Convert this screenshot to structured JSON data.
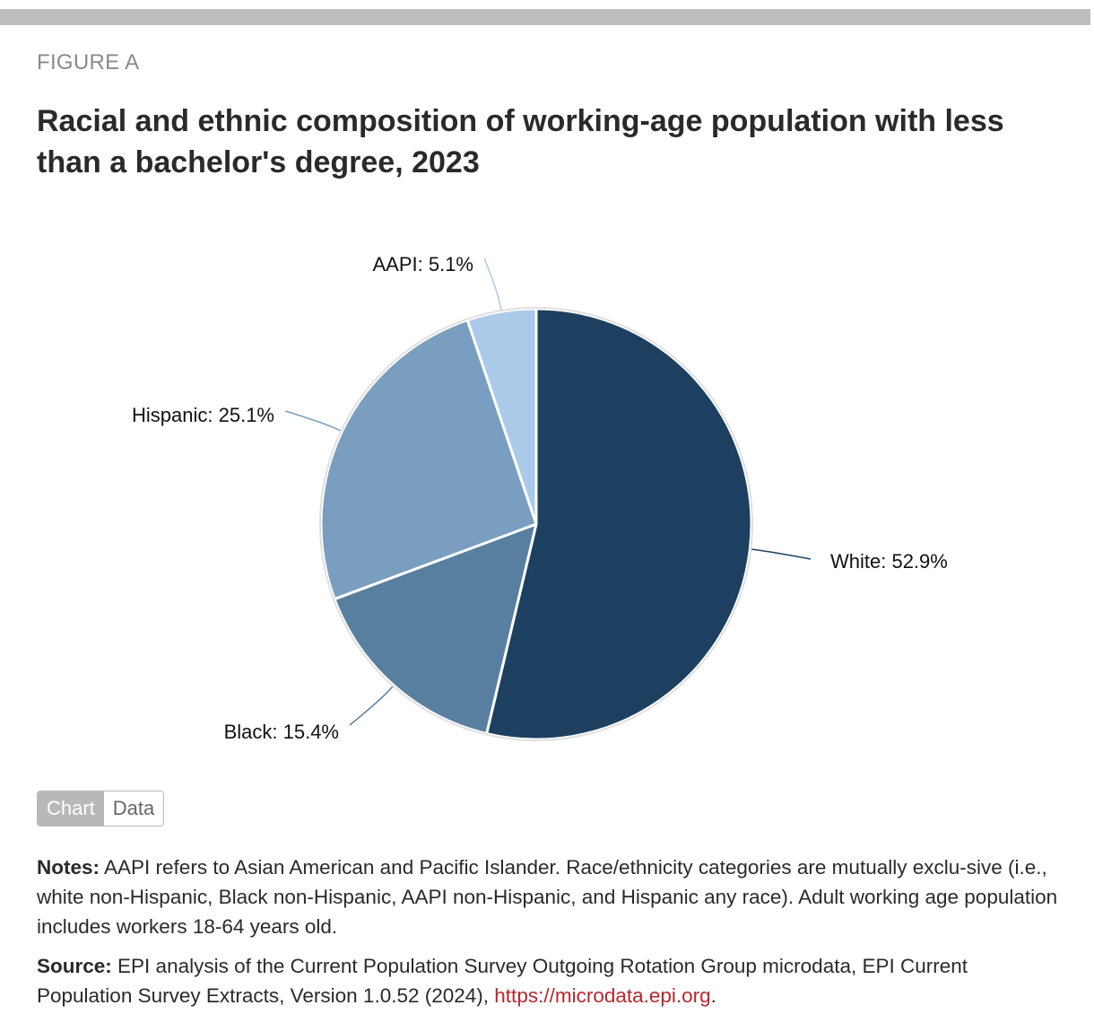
{
  "figure_label": "FIGURE A",
  "title": "Racial and ethnic composition of working-age population with less than a bachelor's degree, 2023",
  "toggle": {
    "chart_label": "Chart",
    "data_label": "Data",
    "active": "Chart"
  },
  "notes": {
    "label": "Notes:",
    "text": " AAPI refers to Asian American and Pacific Islander. Race/ethnicity categories are mutually exclu-sive (i.e., white non-Hispanic, Black non-Hispanic, AAPI non-Hispanic, and Hispanic any race). Adult working age population includes workers 18-64 years old."
  },
  "source": {
    "label": "Source:",
    "text": " EPI analysis of the Current Population Survey Outgoing Rotation Group microdata, EPI Current Population Survey Extracts, Version 1.0.52 (2024), ",
    "link_text": "https://microdata.epi.org",
    "after_link": "."
  },
  "chart_data": {
    "type": "pie",
    "title": "Racial and ethnic composition of working-age population with less than a bachelor's degree, 2023",
    "categories": [
      "White",
      "Black",
      "Hispanic",
      "AAPI"
    ],
    "values": [
      52.9,
      15.4,
      25.1,
      5.1
    ],
    "labels": [
      "White: 52.9%",
      "Black: 15.4%",
      "Hispanic: 25.1%",
      "AAPI: 5.1%"
    ],
    "colors": [
      "#1d4060",
      "#587f9f",
      "#7a9ebf",
      "#abc9e9"
    ],
    "start_angle": "12 o'clock",
    "direction": "clockwise"
  }
}
